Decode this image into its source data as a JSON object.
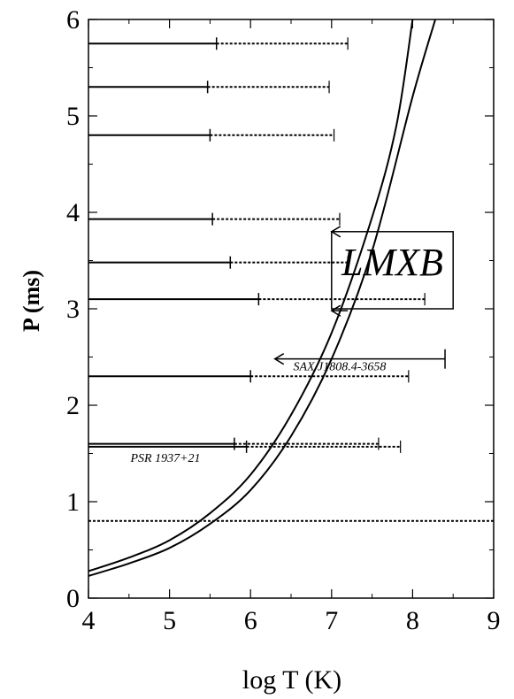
{
  "chart_data": {
    "type": "scatter",
    "title": "",
    "xlabel": "log T (K)",
    "ylabel": "P (ms)",
    "xlim": [
      4,
      9
    ],
    "ylim": [
      0,
      6
    ],
    "x_ticks": [
      "4",
      "5",
      "6",
      "7",
      "8",
      "9"
    ],
    "y_ticks": [
      "0",
      "1",
      "2",
      "3",
      "4",
      "5",
      "6"
    ],
    "grid": false,
    "intervals": [
      {
        "P": 5.75,
        "solid_end": 5.58,
        "dotted_end": 7.2
      },
      {
        "P": 5.3,
        "solid_end": 5.47,
        "dotted_end": 6.97
      },
      {
        "P": 4.8,
        "solid_end": 5.5,
        "dotted_end": 7.03
      },
      {
        "P": 3.93,
        "solid_end": 5.53,
        "dotted_end": 7.1
      },
      {
        "P": 3.48,
        "solid_end": 5.75,
        "dotted_end": 7.2
      },
      {
        "P": 3.1,
        "solid_end": 6.1,
        "dotted_end": 8.15
      },
      {
        "P": 2.3,
        "solid_end": 6.0,
        "dotted_end": 7.95
      },
      {
        "P": 1.6,
        "solid_end": 5.8,
        "dotted_end": 7.58
      },
      {
        "P": 1.57,
        "solid_end": 5.95,
        "dotted_end": 7.85
      }
    ],
    "horizontal_line": {
      "P": 0.8,
      "style": "dotted"
    },
    "curves": [
      {
        "points": [
          [
            4.0,
            0.28
          ],
          [
            4.5,
            0.42
          ],
          [
            5.0,
            0.6
          ],
          [
            5.5,
            0.88
          ],
          [
            6.0,
            1.28
          ],
          [
            6.5,
            1.9
          ],
          [
            7.0,
            2.75
          ],
          [
            7.5,
            3.95
          ],
          [
            7.8,
            4.9
          ],
          [
            8.0,
            6.0
          ]
        ]
      },
      {
        "points": [
          [
            4.0,
            0.23
          ],
          [
            4.5,
            0.36
          ],
          [
            5.0,
            0.52
          ],
          [
            5.5,
            0.77
          ],
          [
            6.0,
            1.12
          ],
          [
            6.5,
            1.68
          ],
          [
            7.0,
            2.48
          ],
          [
            7.5,
            3.6
          ],
          [
            8.0,
            5.2
          ],
          [
            8.28,
            6.0
          ]
        ]
      }
    ],
    "arrows": [
      {
        "from": [
          8.4,
          2.48
        ],
        "to": [
          6.3,
          2.48
        ],
        "end_tick": true
      },
      {
        "from": [
          7.2,
          3.8
        ],
        "to": [
          7.0,
          3.8
        ]
      },
      {
        "from": [
          7.2,
          2.98
        ],
        "to": [
          7.0,
          2.98
        ]
      }
    ],
    "box": {
      "x0": 7.0,
      "x1": 8.5,
      "y0": 3.0,
      "y1": 3.8
    },
    "annotations": [
      {
        "text": "LMXB",
        "x": 7.75,
        "y": 3.35,
        "size": "big"
      },
      {
        "text": "SAX J1808.4-3658",
        "x": 7.1,
        "y": 2.4,
        "size": "small"
      },
      {
        "text": "PSR 1937+21",
        "x": 4.95,
        "y": 1.45,
        "size": "small"
      }
    ]
  }
}
